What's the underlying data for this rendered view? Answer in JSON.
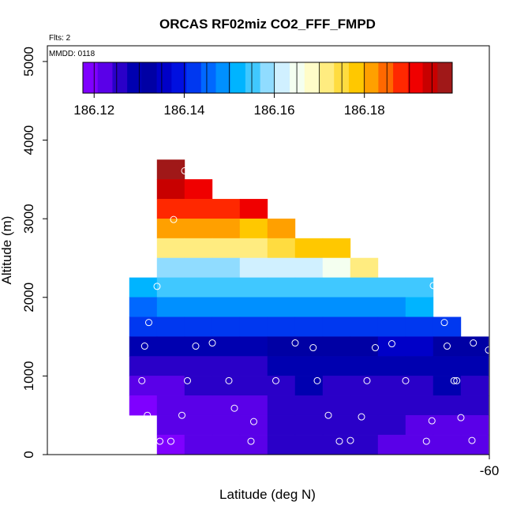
{
  "chart_data": {
    "type": "heatmap",
    "title": "ORCAS RF02miz CO2_FFF_FMPD",
    "subtitle_flights": "Flts: 2",
    "subtitle_date": "MMDD: 0118",
    "xlabel": "Latitude (deg N)",
    "ylabel": "Altitude (m)",
    "x_tick_labels": [
      "-60"
    ],
    "y_ticks": [
      0,
      1000,
      2000,
      3000,
      4000,
      5000
    ],
    "y_tick_labels": [
      "0",
      "1000",
      "2000",
      "3000",
      "4000",
      "5000"
    ],
    "ylim": [
      0,
      5200
    ],
    "colorbar": {
      "min": 186.1175,
      "max": 186.1995,
      "tick_values": [
        186.12,
        186.14,
        186.16,
        186.18
      ],
      "tick_labels": [
        "186.12",
        "186.14",
        "186.16",
        "186.18"
      ],
      "colors": [
        "#7f00ff",
        "#5a00e8",
        "#2a00c8",
        "#0000b0",
        "#0000a4",
        "#0000c8",
        "#0010e0",
        "#0038f0",
        "#0068ff",
        "#0090ff",
        "#00b4ff",
        "#40c8ff",
        "#90dcff",
        "#d0f0ff",
        "#f4fff0",
        "#fffcc8",
        "#ffec80",
        "#ffdc40",
        "#ffc800",
        "#ffa000",
        "#ff6800",
        "#ff2800",
        "#f00000",
        "#c80000",
        "#a01818"
      ]
    },
    "column_index": [
      "c0",
      "c1",
      "c2",
      "c3",
      "c4",
      "c5",
      "c6",
      "c7",
      "c8",
      "c9",
      "c10",
      "c11",
      "c12"
    ],
    "rows": [
      {
        "alt_bottom": 3500,
        "alt_top": 3750,
        "values": [
          null,
          186.1995
        ]
      },
      {
        "alt_bottom": 3250,
        "alt_top": 3500,
        "values": [
          null,
          186.193,
          186.192
        ]
      },
      {
        "alt_bottom": 3000,
        "alt_top": 3250,
        "values": [
          null,
          186.188,
          186.187,
          186.189,
          186.191
        ]
      },
      {
        "alt_bottom": 2750,
        "alt_top": 3000,
        "values": [
          null,
          186.182,
          186.181,
          186.18,
          186.179,
          186.181
        ]
      },
      {
        "alt_bottom": 2500,
        "alt_top": 2750,
        "values": [
          null,
          186.17,
          186.171,
          186.172,
          186.173,
          186.174,
          186.177,
          186.178
        ]
      },
      {
        "alt_bottom": 2250,
        "alt_top": 2500,
        "values": [
          null,
          186.158,
          186.159,
          186.16,
          186.161,
          186.162,
          186.163,
          186.164,
          186.17
        ]
      },
      {
        "alt_bottom": 2000,
        "alt_top": 2250,
        "values": [
          186.153,
          186.155,
          186.155,
          186.156,
          186.156,
          186.156,
          186.156,
          186.156,
          186.156,
          186.156,
          186.155
        ]
      },
      {
        "alt_bottom": 1750,
        "alt_top": 2000,
        "values": [
          186.146,
          186.148,
          186.149,
          186.149,
          186.149,
          186.149,
          186.15,
          186.15,
          186.15,
          186.15,
          186.152
        ]
      },
      {
        "alt_bottom": 1500,
        "alt_top": 1750,
        "values": [
          186.141,
          186.141,
          186.141,
          186.141,
          186.142,
          186.142,
          186.143,
          186.143,
          186.143,
          186.143,
          186.143,
          186.143
        ]
      },
      {
        "alt_bottom": 1250,
        "alt_top": 1500,
        "values": [
          186.128,
          186.128,
          186.128,
          186.128,
          186.13,
          186.132,
          186.132,
          186.133,
          186.133,
          186.134,
          186.135,
          186.133,
          186.131
        ]
      },
      {
        "alt_bottom": 1000,
        "alt_top": 1250,
        "values": [
          186.125,
          186.125,
          186.125,
          186.126,
          186.127,
          186.128,
          186.129,
          186.129,
          186.129,
          186.13,
          186.13,
          186.129,
          186.129
        ]
      },
      {
        "alt_bottom": 750,
        "alt_top": 1000,
        "values": [
          186.121,
          186.123,
          186.127,
          186.126,
          186.127,
          186.127,
          186.128,
          186.127,
          186.127,
          186.127,
          186.127,
          186.128,
          186.127
        ]
      },
      {
        "alt_bottom": 500,
        "alt_top": 750,
        "values": [
          186.119,
          186.121,
          186.124,
          186.124,
          186.124,
          186.125,
          186.125,
          186.125,
          186.125,
          186.125,
          186.125,
          186.125,
          186.126
        ]
      },
      {
        "alt_bottom": 250,
        "alt_top": 500,
        "values": [
          null,
          186.121,
          186.122,
          186.123,
          186.124,
          186.125,
          186.125,
          186.125,
          186.125,
          186.125,
          186.124,
          186.123,
          186.122
        ]
      },
      {
        "alt_bottom": 0,
        "alt_top": 250,
        "values": [
          null,
          186.119,
          186.121,
          186.122,
          186.124,
          186.125,
          186.125,
          186.125,
          186.125,
          186.124,
          186.123,
          186.122,
          186.121
        ]
      }
    ],
    "flight_points": [
      {
        "col": 2.0,
        "alt": 3610
      },
      {
        "col": 1.6,
        "alt": 2990
      },
      {
        "col": 1.0,
        "alt": 2140
      },
      {
        "col": 11.0,
        "alt": 2150
      },
      {
        "col": 0.7,
        "alt": 1680
      },
      {
        "col": 11.4,
        "alt": 1680
      },
      {
        "col": 0.55,
        "alt": 1380
      },
      {
        "col": 2.4,
        "alt": 1380
      },
      {
        "col": 3.0,
        "alt": 1420
      },
      {
        "col": 6.0,
        "alt": 1420
      },
      {
        "col": 6.65,
        "alt": 1360
      },
      {
        "col": 8.9,
        "alt": 1360
      },
      {
        "col": 9.5,
        "alt": 1410
      },
      {
        "col": 11.5,
        "alt": 1380
      },
      {
        "col": 12.45,
        "alt": 1420
      },
      {
        "col": 13.0,
        "alt": 1330
      },
      {
        "col": 0.45,
        "alt": 940
      },
      {
        "col": 2.1,
        "alt": 940
      },
      {
        "col": 3.6,
        "alt": 940
      },
      {
        "col": 5.3,
        "alt": 940
      },
      {
        "col": 6.8,
        "alt": 940
      },
      {
        "col": 8.6,
        "alt": 940
      },
      {
        "col": 10.0,
        "alt": 940
      },
      {
        "col": 11.75,
        "alt": 940
      },
      {
        "col": 11.85,
        "alt": 940
      },
      {
        "col": 0.65,
        "alt": 500
      },
      {
        "col": 1.9,
        "alt": 500
      },
      {
        "col": 3.8,
        "alt": 590
      },
      {
        "col": 4.5,
        "alt": 420
      },
      {
        "col": 7.2,
        "alt": 500
      },
      {
        "col": 8.4,
        "alt": 480
      },
      {
        "col": 10.95,
        "alt": 430
      },
      {
        "col": 12.0,
        "alt": 470
      },
      {
        "col": 1.1,
        "alt": 170
      },
      {
        "col": 1.5,
        "alt": 170
      },
      {
        "col": 4.4,
        "alt": 170
      },
      {
        "col": 7.6,
        "alt": 170
      },
      {
        "col": 8.0,
        "alt": 180
      },
      {
        "col": 10.75,
        "alt": 170
      },
      {
        "col": 12.4,
        "alt": 180
      }
    ]
  }
}
